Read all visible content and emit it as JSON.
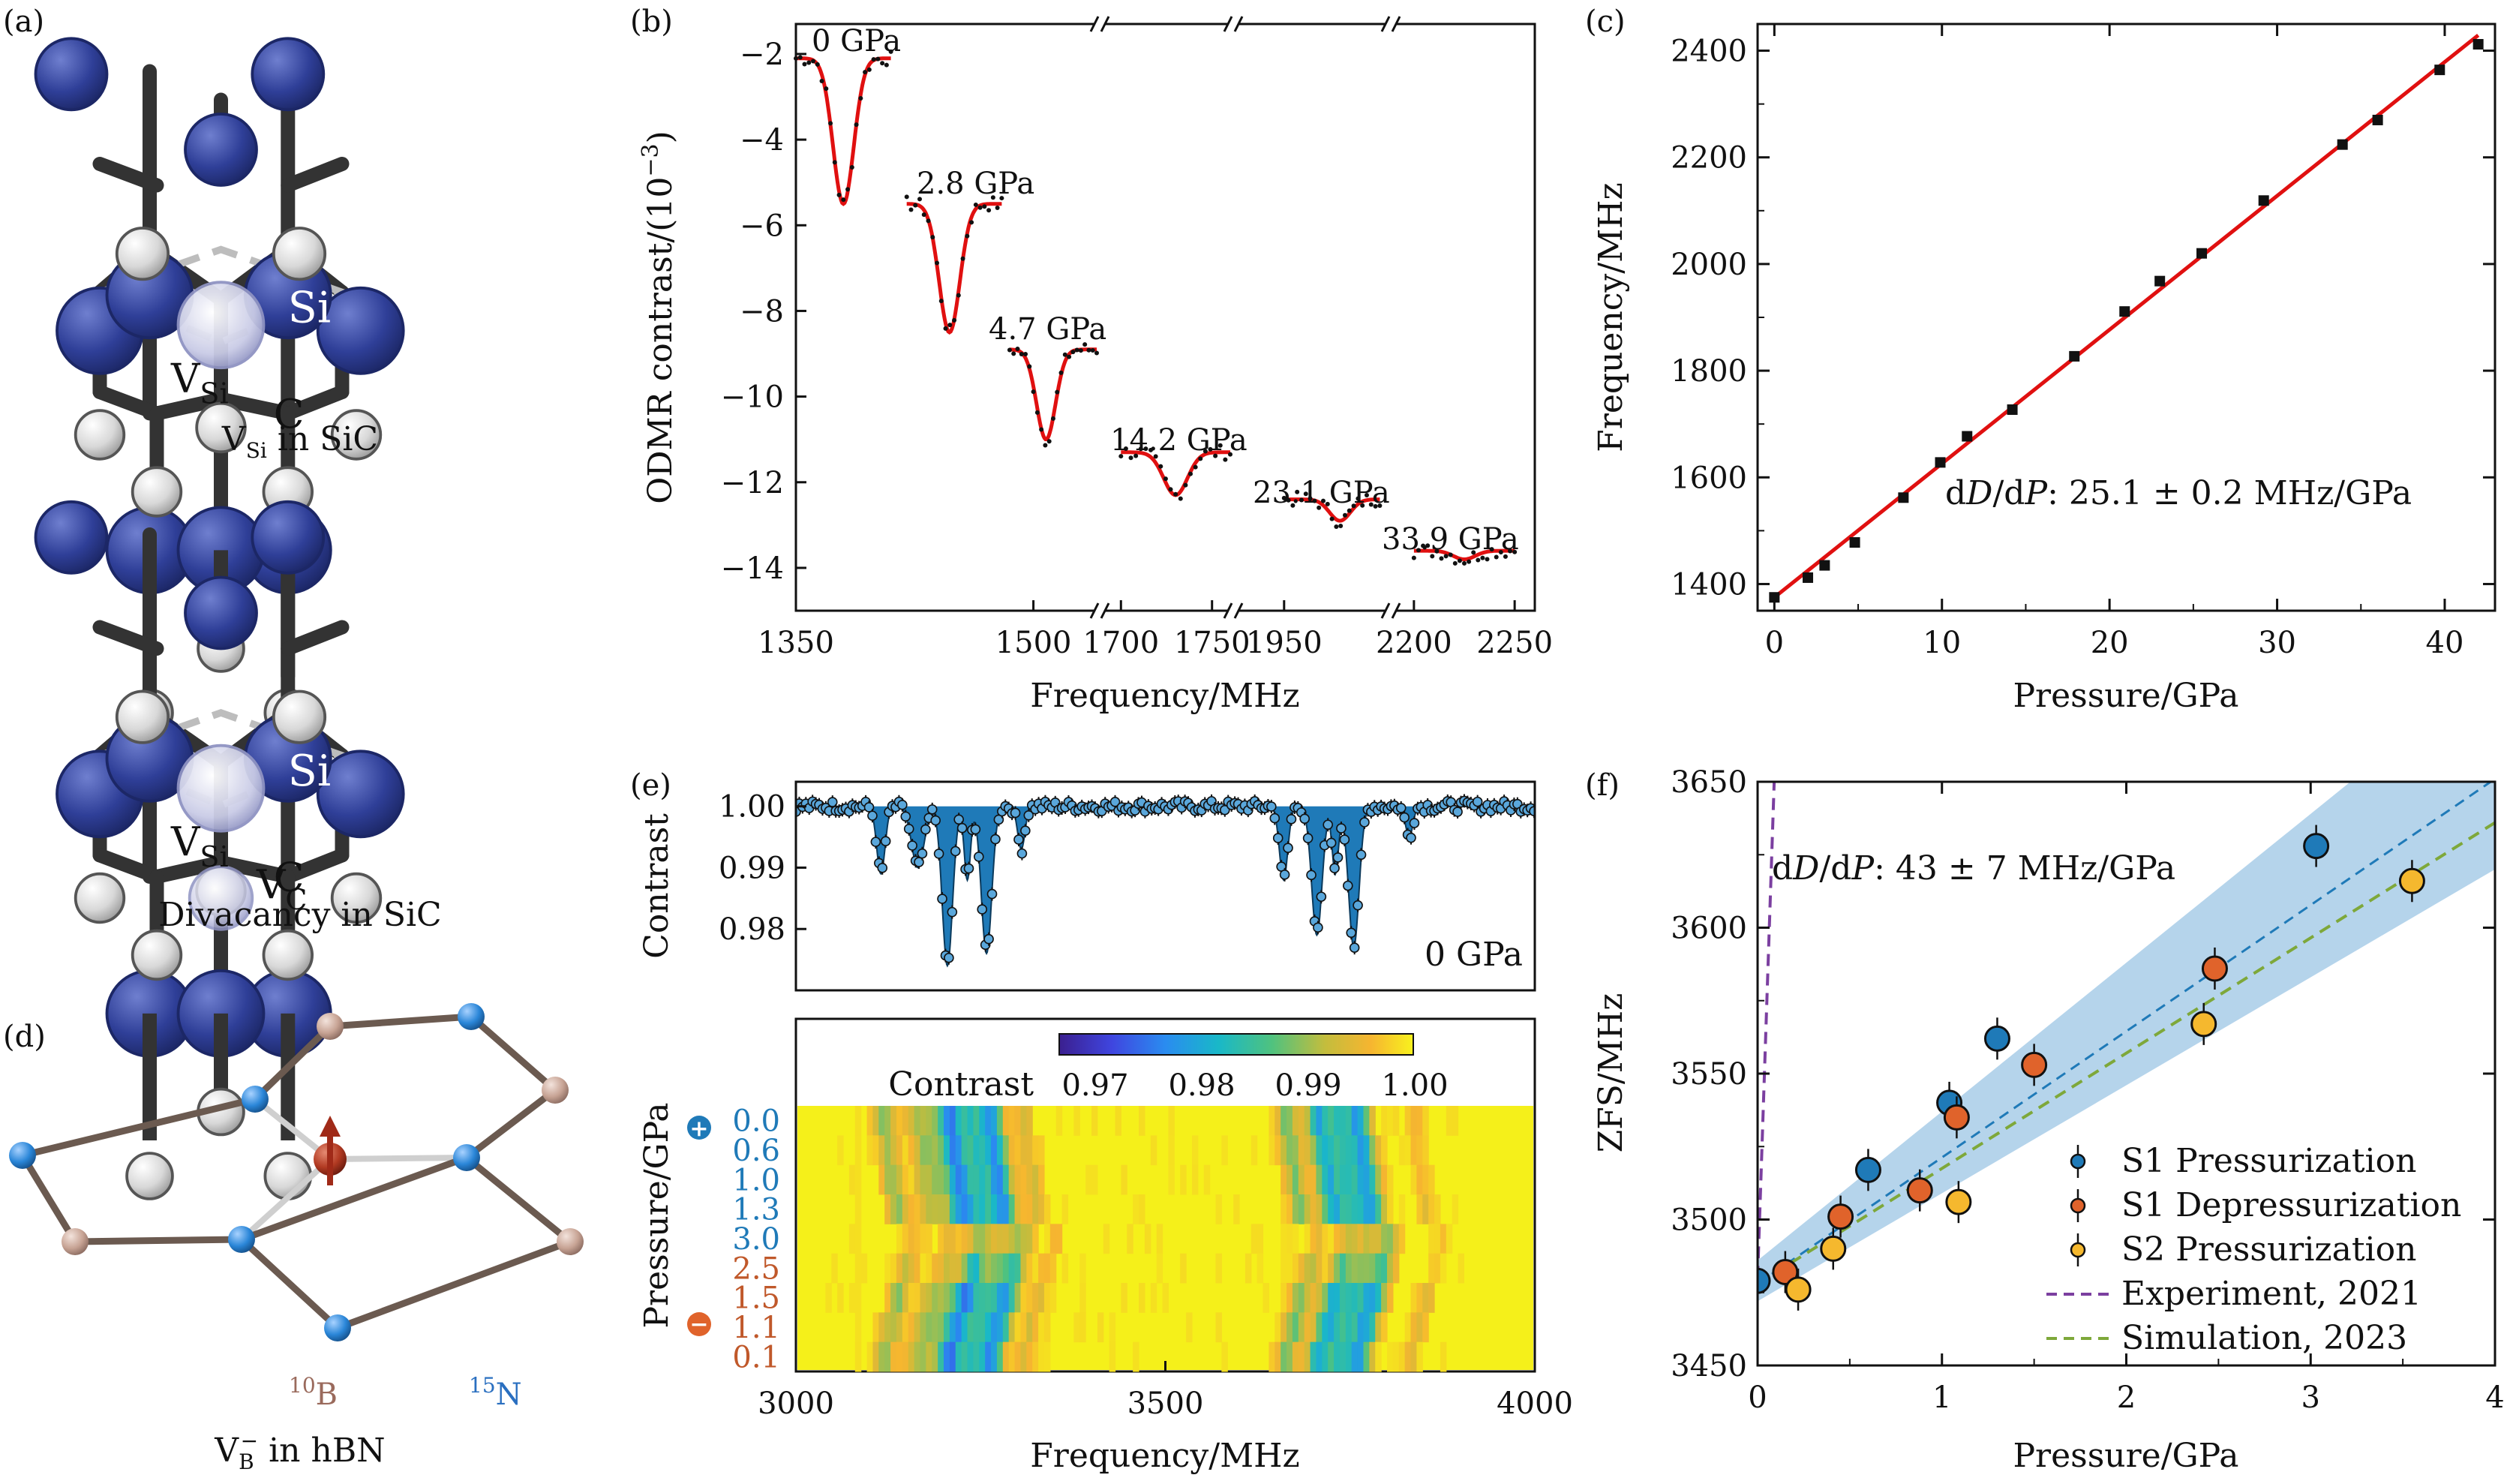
{
  "panel_labels": {
    "a": "(a)",
    "b": "(b)",
    "c": "(c)",
    "d": "(d)",
    "e": "(e)",
    "f": "(f)"
  },
  "captions": {
    "vsi": "V",
    "vsi_sub": "Si",
    "vsi_rest": " in SiC",
    "divacancy": "Divacancy in SiC",
    "hbn": "V",
    "hbn_sub": "B",
    "hbn_sup": "−",
    "hbn_rest": " in hBN"
  },
  "atom_labels": {
    "si": "Si",
    "c": "C",
    "vsi": "V",
    "vsi_sub": "Si",
    "vc": "V",
    "vc_sub": "C",
    "b10": "B",
    "b10_sup": "10",
    "n15": "N",
    "n15_sup": "15"
  },
  "colors": {
    "si": "#2f3f98",
    "c": "#d8d8d8",
    "fit": "#e01010",
    "data": "#111111",
    "band": "#a8cce8",
    "blue": "#1f7ab8",
    "orange": "#e0632b",
    "yellow": "#f5b82e",
    "purple": "#7b3fa0",
    "green": "#7ea83a",
    "boron": "#c7a394",
    "nitrogen": "#2a86d8",
    "heat_pos": "#1f7ab8",
    "heat_neg": "#c0582a"
  },
  "chart_data": [
    {
      "id": "b",
      "type": "line",
      "xlabel": "Frequency/MHz",
      "ylabel": "ODMR contrast/(10",
      "ylabel_sup": "−3",
      "ylabel_end": ")",
      "ylim": [
        -15,
        -1.3
      ],
      "yticks": [
        -2,
        -4,
        -6,
        -8,
        -10,
        -12,
        -14
      ],
      "ytick_labels": [
        "−2",
        "−4",
        "−6",
        "−8",
        "−10",
        "−12",
        "−14"
      ],
      "xticks": [
        "1350",
        "1500",
        "1700",
        "1750",
        "1950",
        "2200",
        "2250"
      ],
      "broken_axis": true,
      "series": [
        {
          "name": "0 GPa",
          "center": 1380,
          "depth": -5.5,
          "baseline": -2.1,
          "xr": [
            1350,
            1410
          ]
        },
        {
          "name": "2.8 GPa",
          "center": 1447,
          "depth": -8.5,
          "baseline": -5.5,
          "xr": [
            1420,
            1480
          ]
        },
        {
          "name": "4.7 GPa",
          "center": 1508,
          "depth": -11.0,
          "baseline": -8.9,
          "xr": [
            1485,
            1540
          ]
        },
        {
          "name": "14.2 GPa",
          "center": 1730,
          "depth": -12.3,
          "baseline": -11.3,
          "xr": [
            1700,
            1760
          ]
        },
        {
          "name": "23.1 GPa",
          "center": 1985,
          "depth": -12.9,
          "baseline": -12.4,
          "xr": [
            1950,
            2010
          ]
        },
        {
          "name": "33.9 GPa",
          "center": 2225,
          "depth": -13.8,
          "baseline": -13.6,
          "xr": [
            2200,
            2250
          ]
        }
      ]
    },
    {
      "id": "c",
      "type": "scatter",
      "xlabel": "Pressure/GPa",
      "ylabel": "Frequency/MHz",
      "xlim": [
        -1,
        43
      ],
      "ylim": [
        1350,
        2450
      ],
      "xticks": [
        0,
        10,
        20,
        30,
        40
      ],
      "yticks": [
        1400,
        1600,
        1800,
        2000,
        2200,
        2400
      ],
      "x": [
        0,
        2,
        3,
        4.8,
        7.7,
        9.9,
        11.5,
        14.2,
        17.9,
        20.9,
        23,
        25.5,
        29.2,
        33.9,
        36,
        39.7,
        42
      ],
      "y": [
        1375,
        1412,
        1435,
        1478,
        1562,
        1628,
        1677,
        1727,
        1827,
        1911,
        1968,
        2020,
        2119,
        2224,
        2270,
        2364,
        2412
      ],
      "fit": {
        "x0": 0,
        "y0": 1375,
        "x1": 42,
        "y1": 2429
      },
      "annotation": "d",
      "annotation_D": "D",
      "annotation_mid": "/d",
      "annotation_P": "P",
      "annotation_rest": ": 25.1 ± 0.2 MHz/GPa"
    },
    {
      "id": "e-top",
      "type": "area",
      "ylabel": "Contrast",
      "xlim": [
        3000,
        4000
      ],
      "ylim": [
        0.97,
        1.004
      ],
      "yticks": [
        1.0,
        0.99,
        0.98
      ],
      "ytick_labels": [
        "1.00",
        "0.99",
        "0.98"
      ],
      "dips": [
        {
          "c": 3115,
          "d": 0.011,
          "w": 8
        },
        {
          "c": 3165,
          "d": 0.01,
          "w": 12
        },
        {
          "c": 3205,
          "d": 0.026,
          "w": 10
        },
        {
          "c": 3232,
          "d": 0.012,
          "w": 6
        },
        {
          "c": 3258,
          "d": 0.024,
          "w": 10
        },
        {
          "c": 3305,
          "d": 0.007,
          "w": 7
        },
        {
          "c": 3660,
          "d": 0.012,
          "w": 8
        },
        {
          "c": 3705,
          "d": 0.021,
          "w": 10
        },
        {
          "c": 3730,
          "d": 0.011,
          "w": 6
        },
        {
          "c": 3755,
          "d": 0.023,
          "w": 10
        },
        {
          "c": 3830,
          "d": 0.005,
          "w": 7
        }
      ],
      "annotation": "0 GPa"
    },
    {
      "id": "e-bottom",
      "type": "heatmap",
      "xlabel": "Frequency/MHz",
      "ylabel": "Pressure/GPa",
      "xlim": [
        3000,
        4000
      ],
      "xticks": [
        3000,
        3500,
        4000
      ],
      "colorbar_title": "Contrast",
      "colorbar_ticks": [
        "0.97",
        "0.98",
        "0.99",
        "1.00"
      ],
      "rows": [
        "0.0",
        "0.6",
        "1.0",
        "1.3",
        "3.0",
        "2.5",
        "1.5",
        "1.1",
        "0.1"
      ],
      "row_colors": [
        "pos",
        "pos",
        "pos",
        "pos",
        "pos",
        "neg",
        "neg",
        "neg",
        "neg"
      ],
      "plus": "+",
      "minus": "−"
    },
    {
      "id": "f",
      "type": "scatter",
      "xlabel": "Pressure/GPa",
      "ylabel": "ZFS/MHz",
      "xlim": [
        0,
        4
      ],
      "ylim": [
        3450,
        3650
      ],
      "xticks": [
        0,
        1,
        2,
        3,
        4
      ],
      "yticks": [
        3450,
        3500,
        3550,
        3600,
        3650
      ],
      "series": [
        {
          "name": "S1 Pressurization",
          "x": [
            0,
            0.6,
            1.04,
            1.3,
            3.03
          ],
          "y": [
            3479,
            3517,
            3540,
            3562,
            3628
          ]
        },
        {
          "name": "S1 Depressurization",
          "x": [
            0.15,
            0.45,
            0.88,
            1.08,
            1.5,
            2.48
          ],
          "y": [
            3482,
            3501,
            3510,
            3535,
            3553,
            3586
          ]
        },
        {
          "name": "S2 Pressurization",
          "x": [
            0.22,
            0.41,
            1.09,
            2.42,
            3.55
          ],
          "y": [
            3476,
            3490,
            3506,
            3567,
            3616
          ]
        }
      ],
      "lines": [
        {
          "name": "Experiment, 2021",
          "x": [
            0,
            0.09
          ],
          "y": [
            3480,
            3650
          ]
        },
        {
          "name": "Simulation, 2023",
          "x": [
            0,
            4
          ],
          "y": [
            3478,
            3636
          ]
        }
      ],
      "band_line": {
        "x": [
          0,
          4
        ],
        "y": [
          3478,
          3651
        ]
      },
      "annotation": "d",
      "annotation_D": "D",
      "annotation_mid": "/d",
      "annotation_P": "P",
      "annotation_rest": ": 43 ± 7 MHz/GPa"
    }
  ]
}
